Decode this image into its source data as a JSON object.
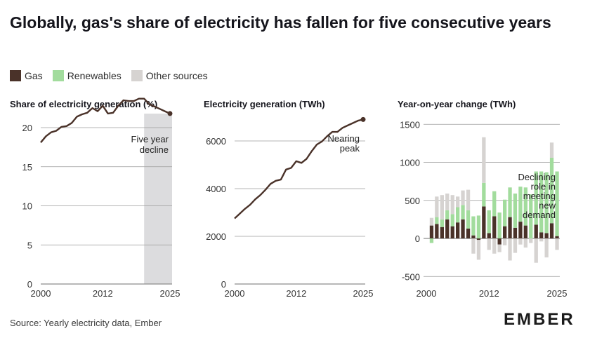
{
  "title": "Globally, gas's share of electricity has fallen for five consecutive years",
  "legend": [
    {
      "label": "Gas",
      "color": "#4a3229"
    },
    {
      "label": "Renewables",
      "color": "#a2dc9d"
    },
    {
      "label": "Other sources",
      "color": "#d6d3d1"
    }
  ],
  "source": "Source: Yearly electricity data, Ember",
  "logo": "EMBER",
  "chart_data": [
    {
      "type": "line",
      "title": "Share of electricity generation (%)",
      "x": [
        2000,
        2001,
        2002,
        2003,
        2004,
        2005,
        2006,
        2007,
        2008,
        2009,
        2010,
        2011,
        2012,
        2013,
        2014,
        2015,
        2016,
        2017,
        2018,
        2019,
        2020,
        2021,
        2022,
        2023,
        2024,
        2025
      ],
      "series": [
        {
          "name": "Gas",
          "values": [
            18.1,
            18.9,
            19.4,
            19.6,
            20.1,
            20.2,
            20.6,
            21.4,
            21.7,
            21.9,
            22.5,
            22.1,
            22.8,
            21.8,
            21.9,
            22.8,
            23.5,
            23.4,
            23.4,
            23.7,
            23.7,
            23.0,
            22.7,
            22.4,
            22.1,
            21.8
          ]
        }
      ],
      "xticks": [
        "2000",
        "2012",
        "2025"
      ],
      "yticks": [
        "0",
        "5",
        "10",
        "15",
        "20"
      ],
      "ylim": [
        0,
        24
      ],
      "shaded_range": [
        2020,
        2025
      ],
      "annotation": {
        "lines": [
          "Five year",
          "decline"
        ]
      }
    },
    {
      "type": "line",
      "title": "Electricity generation (TWh)",
      "x": [
        2000,
        2001,
        2002,
        2003,
        2004,
        2005,
        2006,
        2007,
        2008,
        2009,
        2010,
        2011,
        2012,
        2013,
        2014,
        2015,
        2016,
        2017,
        2018,
        2019,
        2020,
        2021,
        2022,
        2023,
        2024,
        2025
      ],
      "series": [
        {
          "name": "Gas",
          "values": [
            2750,
            2950,
            3150,
            3320,
            3550,
            3730,
            3950,
            4200,
            4330,
            4380,
            4800,
            4870,
            5150,
            5080,
            5250,
            5570,
            5850,
            5980,
            6200,
            6380,
            6380,
            6550,
            6650,
            6750,
            6850,
            6900
          ]
        }
      ],
      "xticks": [
        "2000",
        "2012",
        "2025"
      ],
      "yticks": [
        "0",
        "2000",
        "4000",
        "6000"
      ],
      "ylim": [
        0,
        7000
      ],
      "annotation": {
        "lines": [
          "Nearing",
          "peak"
        ]
      }
    },
    {
      "type": "bar",
      "stacked": true,
      "title": "Year-on-year change (TWh)",
      "x": [
        2001,
        2002,
        2003,
        2004,
        2005,
        2006,
        2007,
        2008,
        2009,
        2010,
        2011,
        2012,
        2013,
        2014,
        2015,
        2016,
        2017,
        2018,
        2019,
        2020,
        2021,
        2022,
        2023,
        2024,
        2025
      ],
      "series": [
        {
          "name": "Gas",
          "values": [
            170,
            190,
            150,
            250,
            160,
            210,
            250,
            130,
            40,
            -20,
            420,
            70,
            290,
            -80,
            160,
            280,
            140,
            220,
            170,
            0,
            180,
            80,
            70,
            200,
            30
          ]
        },
        {
          "name": "Renewables",
          "values": [
            -60,
            90,
            100,
            120,
            160,
            200,
            190,
            240,
            250,
            300,
            310,
            300,
            330,
            340,
            350,
            390,
            450,
            460,
            500,
            580,
            700,
            800,
            800,
            860,
            850
          ]
        },
        {
          "name": "Other sources",
          "values": [
            100,
            270,
            320,
            220,
            250,
            140,
            190,
            270,
            -200,
            -260,
            600,
            -150,
            -200,
            -100,
            -90,
            -290,
            -190,
            -80,
            -120,
            -60,
            -320,
            -40,
            -250,
            200,
            -150
          ]
        }
      ],
      "xticks": [
        "2000",
        "2012",
        "2025"
      ],
      "yticks": [
        "-500",
        "0",
        "500",
        "1000",
        "1500"
      ],
      "ylim": [
        -600,
        1600
      ],
      "annotation": {
        "lines": [
          "Declining",
          "role in",
          "meeting",
          "new",
          "demand"
        ]
      }
    }
  ]
}
